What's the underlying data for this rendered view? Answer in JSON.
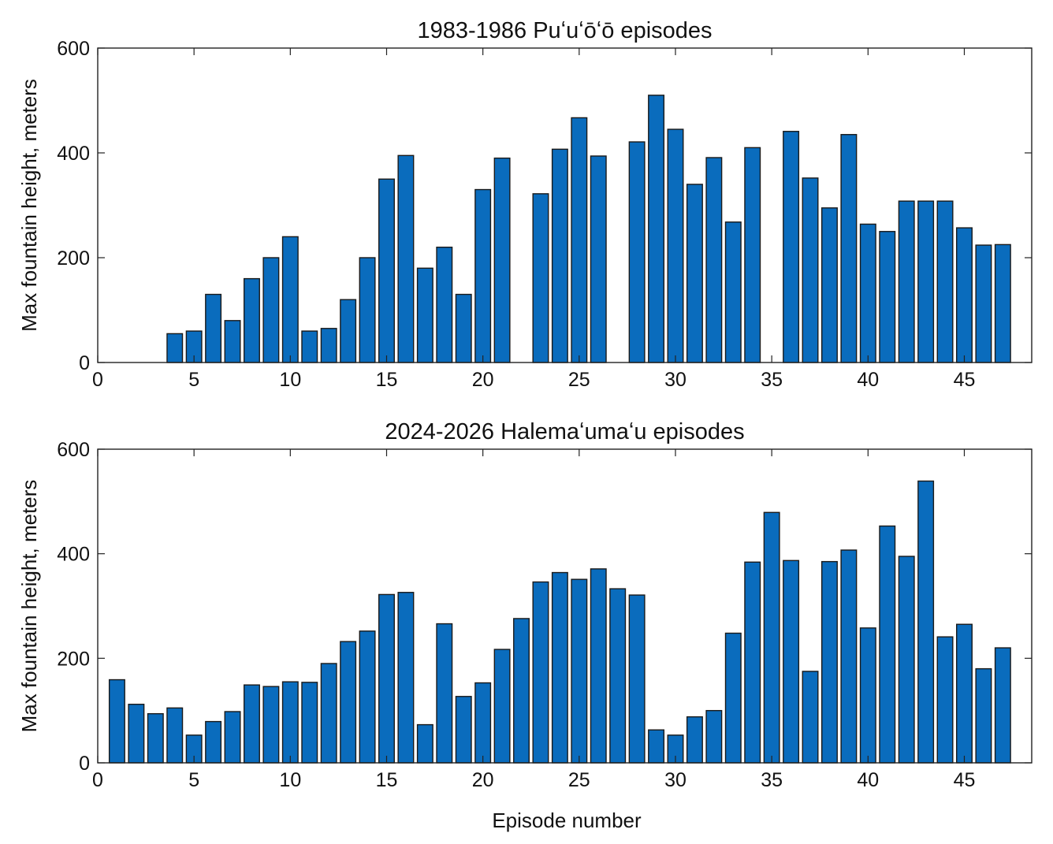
{
  "figure": {
    "xlabel": "Episode number"
  },
  "colors": {
    "bar_fill": "#0A6CBD",
    "bar_edge": "#1a1a1a",
    "axis": "#222222",
    "background": "#ffffff"
  },
  "chart_data": [
    {
      "type": "bar",
      "title": "1983-1986 Puʻuʻōʻō episodes",
      "xlabel": "",
      "ylabel": "Max fountain height, meters",
      "xlim": [
        0,
        48.5
      ],
      "ylim": [
        0,
        600
      ],
      "xticks": [
        0,
        5,
        10,
        15,
        20,
        25,
        30,
        35,
        40,
        45
      ],
      "yticks": [
        0,
        200,
        400,
        600
      ],
      "grid": false,
      "x": [
        1,
        2,
        3,
        4,
        5,
        6,
        7,
        8,
        9,
        10,
        11,
        12,
        13,
        14,
        15,
        16,
        17,
        18,
        19,
        20,
        21,
        22,
        23,
        24,
        25,
        26,
        27,
        28,
        29,
        30,
        31,
        32,
        33,
        34,
        35,
        36,
        37,
        38,
        39,
        40,
        41,
        42,
        43,
        44,
        45,
        46,
        47
      ],
      "values": [
        0,
        0,
        0,
        55,
        60,
        130,
        80,
        160,
        200,
        240,
        60,
        65,
        120,
        200,
        350,
        395,
        180,
        220,
        130,
        330,
        390,
        0,
        322,
        407,
        467,
        394,
        0,
        421,
        510,
        445,
        340,
        391,
        268,
        410,
        0,
        441,
        352,
        295,
        435,
        264,
        250,
        308,
        308,
        308,
        257,
        224,
        225
      ]
    },
    {
      "type": "bar",
      "title": "2024-2026 Halemaʻumaʻu episodes",
      "xlabel": "Episode number",
      "ylabel": "Max fountain height, meters",
      "xlim": [
        0,
        48.5
      ],
      "ylim": [
        0,
        600
      ],
      "xticks": [
        0,
        5,
        10,
        15,
        20,
        25,
        30,
        35,
        40,
        45
      ],
      "yticks": [
        0,
        200,
        400,
        600
      ],
      "grid": false,
      "x": [
        1,
        2,
        3,
        4,
        5,
        6,
        7,
        8,
        9,
        10,
        11,
        12,
        13,
        14,
        15,
        16,
        17,
        18,
        19,
        20,
        21,
        22,
        23,
        24,
        25,
        26,
        27,
        28,
        29,
        30,
        31,
        32,
        33,
        34,
        35,
        36,
        37,
        38,
        39,
        40,
        41,
        42,
        43,
        44,
        45,
        46,
        47
      ],
      "values": [
        159,
        112,
        94,
        105,
        53,
        79,
        98,
        149,
        146,
        155,
        154,
        190,
        232,
        252,
        322,
        326,
        73,
        266,
        127,
        153,
        217,
        276,
        346,
        364,
        351,
        371,
        333,
        321,
        63,
        53,
        88,
        100,
        248,
        384,
        479,
        387,
        175,
        385,
        407,
        258,
        453,
        395,
        539,
        241,
        265,
        180,
        220
      ]
    }
  ]
}
